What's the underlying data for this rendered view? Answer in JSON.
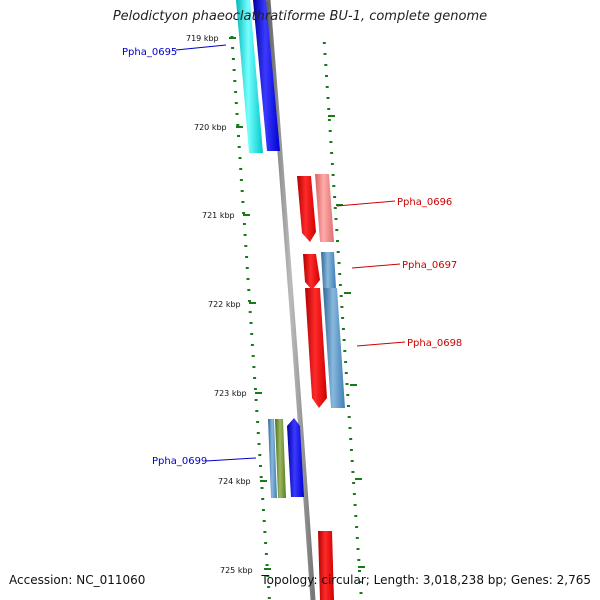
{
  "title": "Pelodictyon phaeoclathratiforme BU-1, complete genome",
  "footer": {
    "accession": "Accession: NC_011060",
    "summary": "Topology: circular; Length: 3,018,238 bp; Genes: 2,765"
  },
  "colors": {
    "backbone": "#808080",
    "tick": "#1a7a1a",
    "label_forward": "#cc0000",
    "label_reverse": "#0000cc"
  },
  "ticks": [
    "719 kbp",
    "720 kbp",
    "721 kbp",
    "722 kbp",
    "723 kbp",
    "724 kbp",
    "725 kbp"
  ],
  "genes": [
    {
      "label": "Ppha_0695",
      "strand": "reverse"
    },
    {
      "label": "Ppha_0696",
      "strand": "forward"
    },
    {
      "label": "Ppha_0697",
      "strand": "forward"
    },
    {
      "label": "Ppha_0698",
      "strand": "forward"
    },
    {
      "label": "Ppha_0699",
      "strand": "reverse"
    }
  ]
}
